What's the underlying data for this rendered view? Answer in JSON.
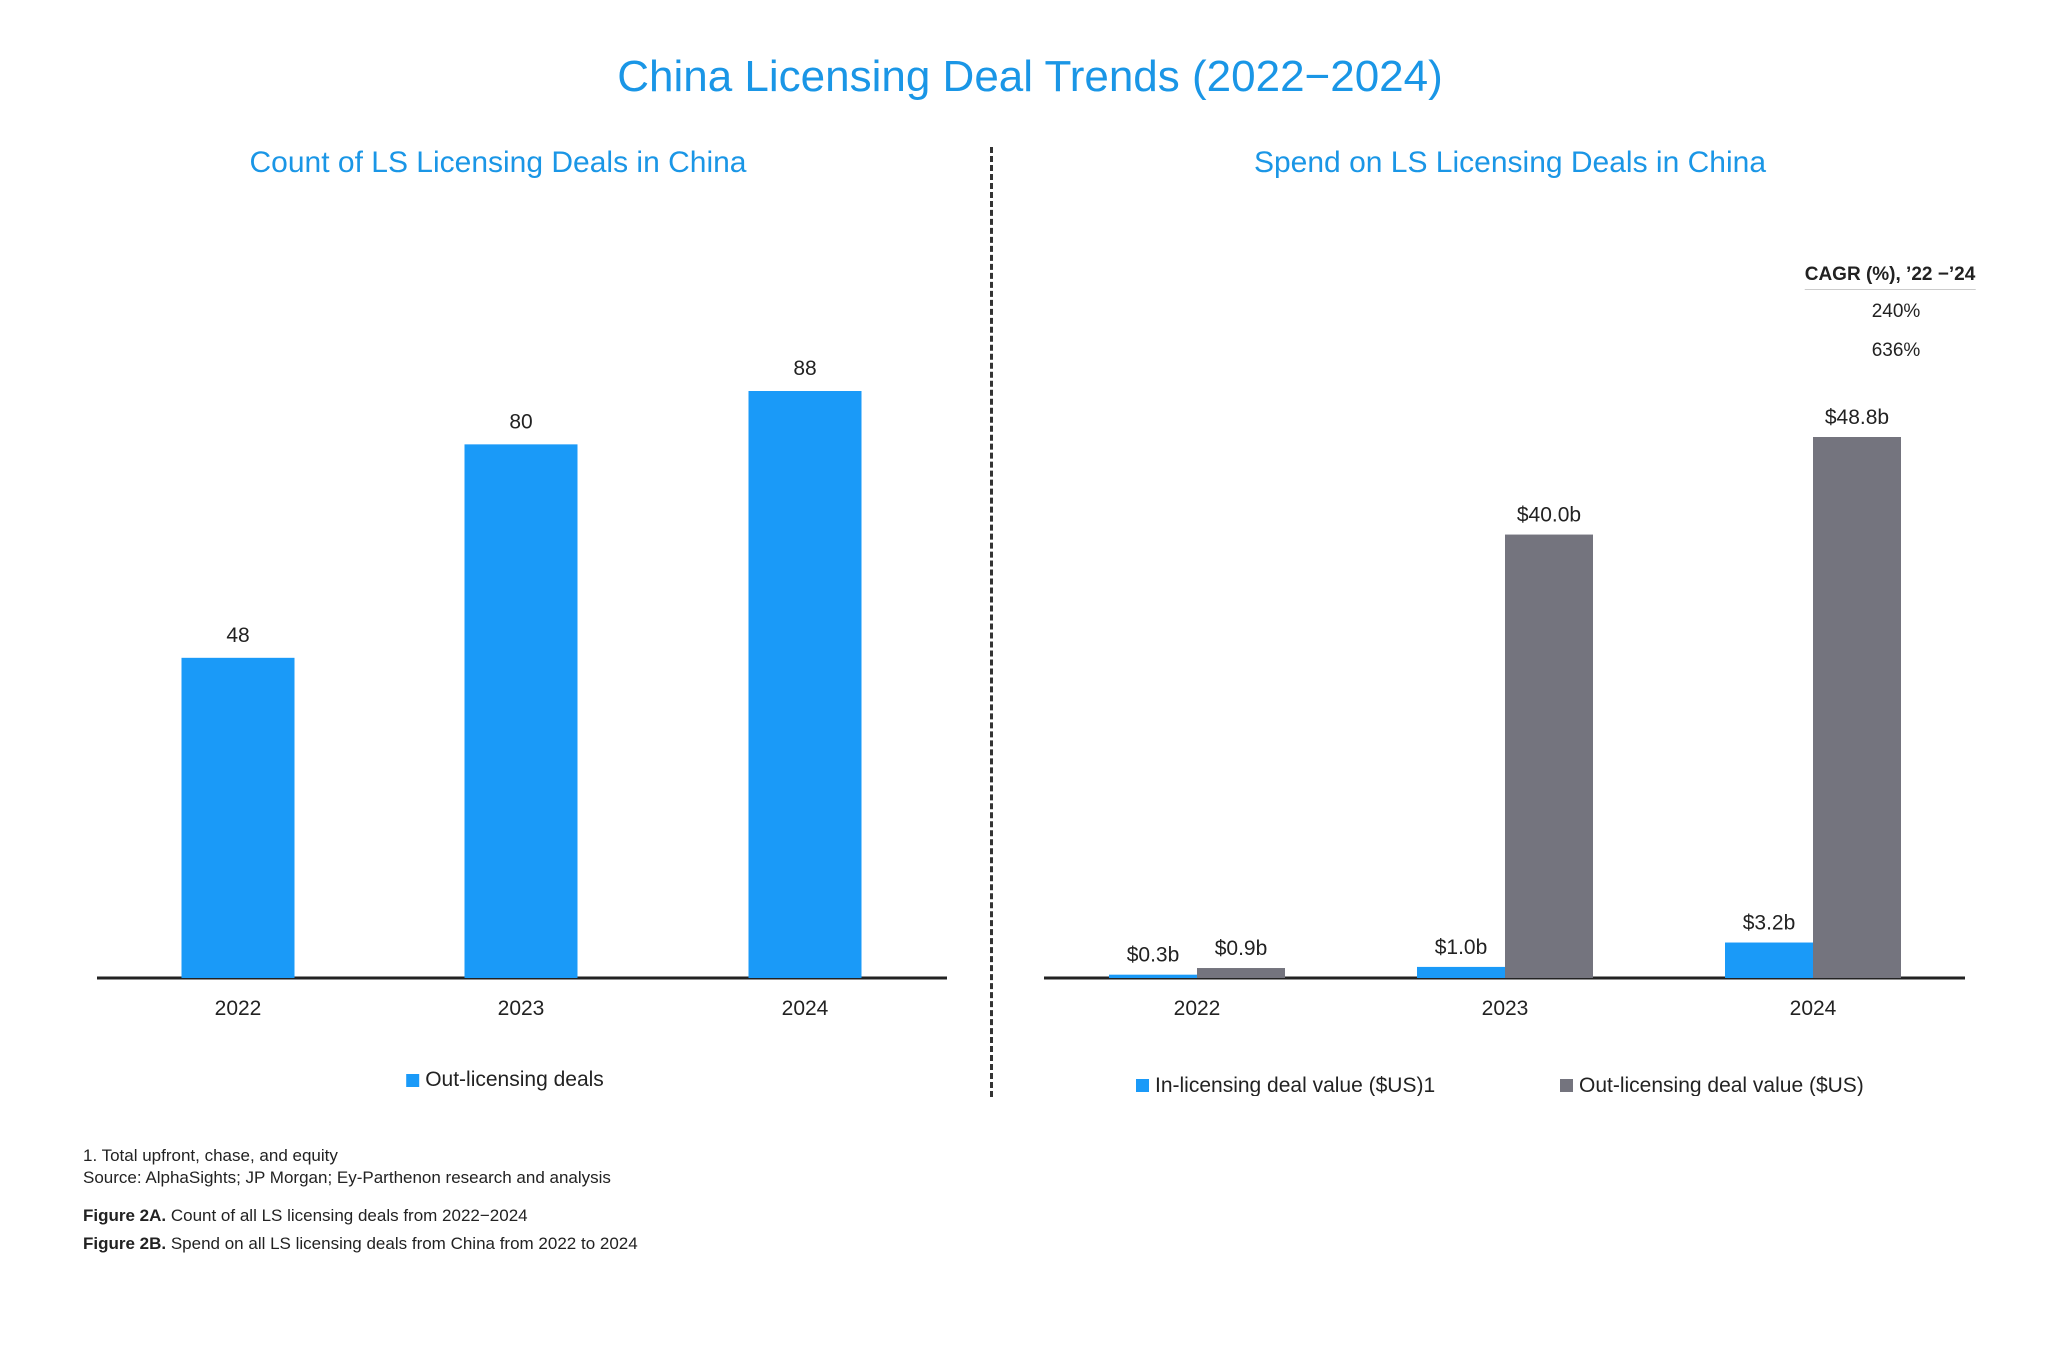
{
  "title": "China Licensing Deal Trends (2022−2024)",
  "chart_data": [
    {
      "type": "bar",
      "title": "Count of LS Licensing Deals in China",
      "categories": [
        "2022",
        "2023",
        "2024"
      ],
      "series": [
        {
          "name": "Out-licensing deals",
          "values": [
            48,
            80,
            88
          ],
          "labels": [
            "48",
            "80",
            "88"
          ],
          "color": "#1a9af8"
        }
      ],
      "legend": "bottom",
      "grid": false
    },
    {
      "type": "bar",
      "title": "Spend on LS Licensing Deals in China",
      "categories": [
        "2022",
        "2023",
        "2024"
      ],
      "series": [
        {
          "name": "In-licensing deal value ($US)1",
          "values": [
            0.3,
            1.0,
            3.2
          ],
          "labels": [
            "$0.3b",
            "$1.0b",
            "$3.2b"
          ],
          "color": "#1a9af8"
        },
        {
          "name": "Out-licensing deal value ($US)",
          "values": [
            0.9,
            40.0,
            48.8
          ],
          "labels": [
            "$0.9b",
            "$40.0b",
            "$48.8b"
          ],
          "color": "#74747e"
        }
      ],
      "legend": "bottom",
      "grid": false,
      "cagr": {
        "title": "CAGR (%), ’22 −’24",
        "values": [
          "240%",
          "636%"
        ]
      }
    }
  ],
  "footnotes": {
    "note1": "1. Total upfront, chase, and equity",
    "source": "Source: AlphaSights; JP Morgan; Ey-Parthenon research and analysis",
    "fig2a_label": "Figure 2A.",
    "fig2a_text": " Count of all LS licensing deals from 2022−2024",
    "fig2b_label": "Figure 2B.",
    "fig2b_text": " Spend on all LS licensing deals from China from 2022 to 2024"
  }
}
